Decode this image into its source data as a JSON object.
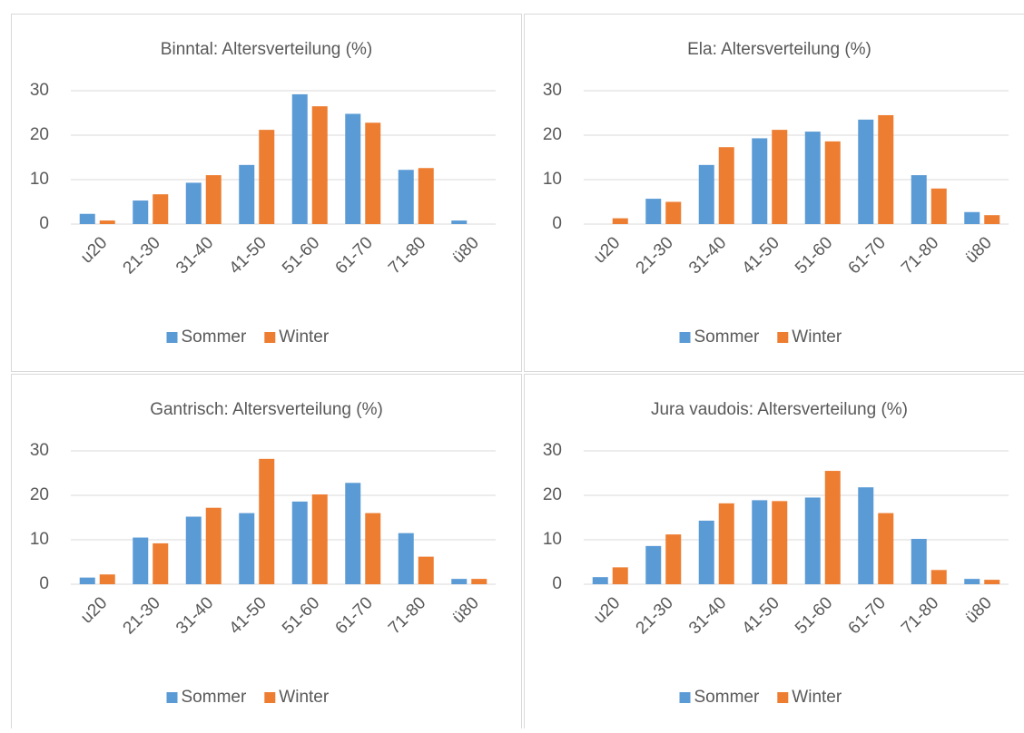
{
  "chart_data": [
    {
      "type": "bar",
      "title": "Binntal: Altersverteilung (%)",
      "categories": [
        "u20",
        "21-30",
        "31-40",
        "41-50",
        "51-60",
        "61-70",
        "71-80",
        "ü80"
      ],
      "series": [
        {
          "name": "Sommer",
          "color": "#5b9bd5",
          "values": [
            2.3,
            5.3,
            9.3,
            13.3,
            29.2,
            24.8,
            12.2,
            0.8
          ]
        },
        {
          "name": "Winter",
          "color": "#ed7d31",
          "values": [
            0.8,
            6.7,
            11,
            21.2,
            26.5,
            22.8,
            12.6,
            0
          ]
        }
      ],
      "ylim": [
        0,
        30
      ],
      "yticks": [
        0,
        10,
        20,
        30
      ],
      "grid": true,
      "legend": "bottom"
    },
    {
      "type": "bar",
      "title": "Ela: Altersverteilung (%)",
      "categories": [
        "u20",
        "21-30",
        "31-40",
        "41-50",
        "51-60",
        "61-70",
        "71-80",
        "ü80"
      ],
      "series": [
        {
          "name": "Sommer",
          "color": "#5b9bd5",
          "values": [
            0,
            5.7,
            13.3,
            19.3,
            20.8,
            23.5,
            11,
            2.7
          ]
        },
        {
          "name": "Winter",
          "color": "#ed7d31",
          "values": [
            1.3,
            5,
            17.3,
            21.2,
            18.6,
            24.5,
            8,
            2
          ]
        }
      ],
      "ylim": [
        0,
        30
      ],
      "yticks": [
        0,
        10,
        20,
        30
      ],
      "grid": true,
      "legend": "bottom"
    },
    {
      "type": "bar",
      "title": "Gantrisch: Altersverteilung (%)",
      "categories": [
        "u20",
        "21-30",
        "31-40",
        "41-50",
        "51-60",
        "61-70",
        "71-80",
        "ü80"
      ],
      "series": [
        {
          "name": "Sommer",
          "color": "#5b9bd5",
          "values": [
            1.5,
            10.5,
            15.2,
            16,
            18.6,
            22.8,
            11.5,
            1.2
          ]
        },
        {
          "name": "Winter",
          "color": "#ed7d31",
          "values": [
            2.2,
            9.2,
            17.2,
            28.2,
            20.2,
            16,
            6.2,
            1.2
          ]
        }
      ],
      "ylim": [
        0,
        30
      ],
      "yticks": [
        0,
        10,
        20,
        30
      ],
      "grid": true,
      "legend": "bottom"
    },
    {
      "type": "bar",
      "title": "Jura vaudois: Altersverteilung (%)",
      "categories": [
        "u20",
        "21-30",
        "31-40",
        "41-50",
        "51-60",
        "61-70",
        "71-80",
        "ü80"
      ],
      "series": [
        {
          "name": "Sommer",
          "color": "#5b9bd5",
          "values": [
            1.6,
            8.6,
            14.3,
            18.9,
            19.5,
            21.8,
            10.2,
            1.2
          ]
        },
        {
          "name": "Winter",
          "color": "#ed7d31",
          "values": [
            3.8,
            11.2,
            18.2,
            18.7,
            25.5,
            16,
            3.2,
            1
          ]
        }
      ],
      "ylim": [
        0,
        30
      ],
      "yticks": [
        0,
        10,
        20,
        30
      ],
      "grid": true,
      "legend": "bottom"
    }
  ]
}
